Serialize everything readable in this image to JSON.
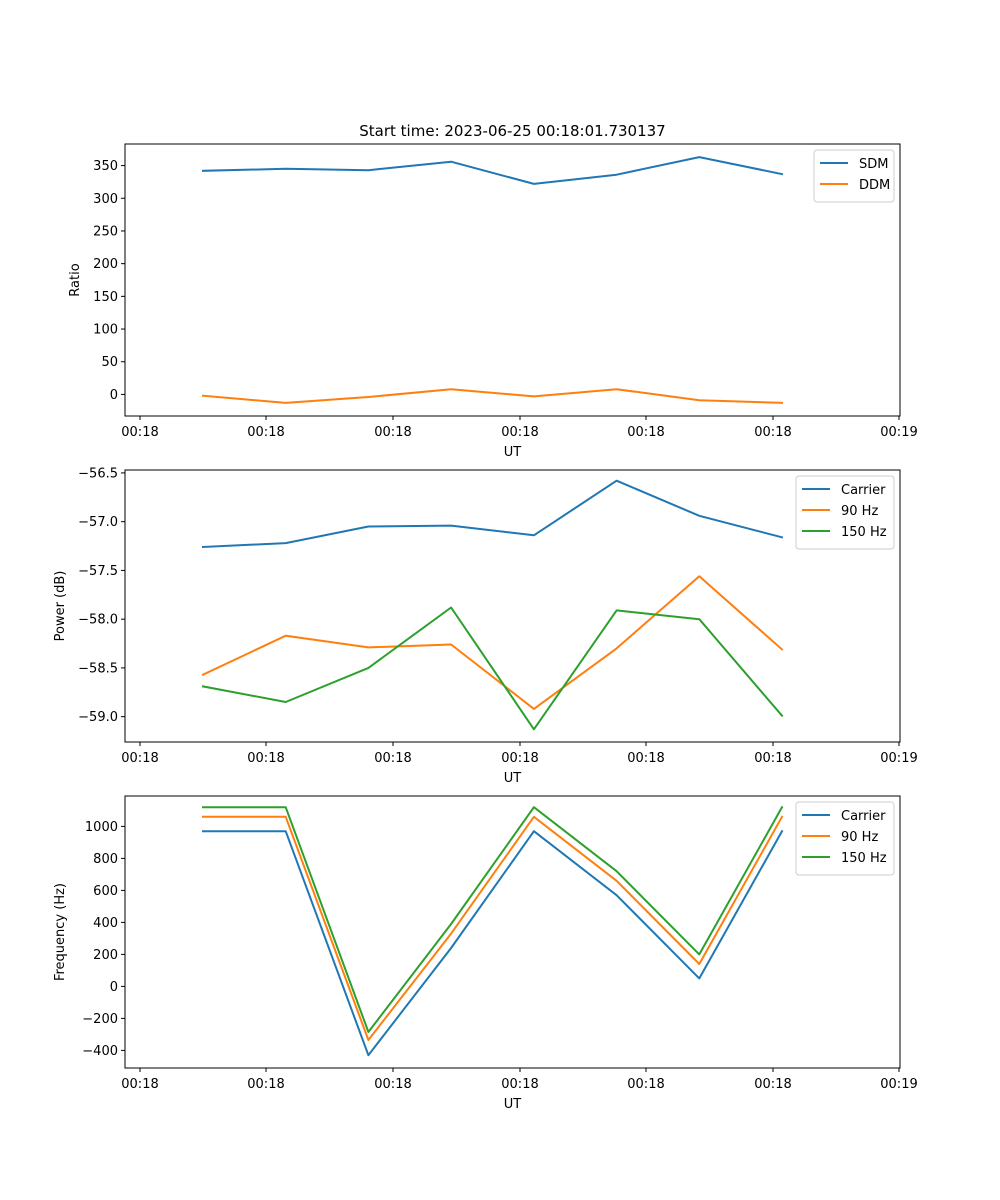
{
  "figure": {
    "title": "Start time: 2023-06-25 00:18:01.730137"
  },
  "chart_data": [
    {
      "type": "line",
      "title": "Start time: 2023-06-25 00:18:01.730137",
      "xlabel": "UT",
      "ylabel": "Ratio",
      "x_tick_labels": [
        "00:18",
        "00:18",
        "00:18",
        "00:18",
        "00:18",
        "00:18",
        "00:19"
      ],
      "y_ticks": [
        0,
        50,
        100,
        150,
        200,
        250,
        300,
        350
      ],
      "ylim": [
        -33,
        383
      ],
      "grid": false,
      "legend_position": "top-right",
      "series": [
        {
          "name": "SDM",
          "color": "#1f77b4",
          "values": [
            342,
            345,
            343,
            356,
            322,
            336,
            363,
            337
          ]
        },
        {
          "name": "DDM",
          "color": "#ff7f0e",
          "values": [
            -2,
            -13,
            -4,
            8,
            -3,
            8,
            -9,
            -13
          ]
        }
      ]
    },
    {
      "type": "line",
      "title": "",
      "xlabel": "UT",
      "ylabel": "Power (dB)",
      "x_tick_labels": [
        "00:18",
        "00:18",
        "00:18",
        "00:18",
        "00:18",
        "00:18",
        "00:19"
      ],
      "y_ticks": [
        -59.0,
        -58.5,
        -58.0,
        -57.5,
        -57.0,
        -56.5
      ],
      "ylim": [
        -59.26,
        -56.47
      ],
      "grid": false,
      "legend_position": "top-right",
      "series": [
        {
          "name": "Carrier",
          "color": "#1f77b4",
          "values": [
            -57.26,
            -57.22,
            -57.05,
            -57.04,
            -57.14,
            -56.58,
            -56.94,
            -57.16
          ]
        },
        {
          "name": "90 Hz",
          "color": "#ff7f0e",
          "values": [
            -58.57,
            -58.17,
            -58.29,
            -58.26,
            -58.92,
            -58.3,
            -57.56,
            -58.31
          ]
        },
        {
          "name": "150 Hz",
          "color": "#2ca02c",
          "values": [
            -58.69,
            -58.85,
            -58.5,
            -57.88,
            -59.13,
            -57.91,
            -58.0,
            -58.99
          ]
        }
      ]
    },
    {
      "type": "line",
      "title": "",
      "xlabel": "UT",
      "ylabel": "Frequency (Hz)",
      "x_tick_labels": [
        "00:18",
        "00:18",
        "00:18",
        "00:18",
        "00:18",
        "00:18",
        "00:19"
      ],
      "y_ticks": [
        -400,
        -200,
        0,
        200,
        400,
        600,
        800,
        1000
      ],
      "ylim": [
        -510,
        1190
      ],
      "grid": false,
      "legend_position": "top-right",
      "series": [
        {
          "name": "Carrier",
          "color": "#1f77b4",
          "values": [
            970,
            970,
            -430,
            240,
            970,
            570,
            50,
            970
          ]
        },
        {
          "name": "90 Hz",
          "color": "#ff7f0e",
          "values": [
            1060,
            1060,
            -335,
            330,
            1060,
            660,
            140,
            1060
          ]
        },
        {
          "name": "150 Hz",
          "color": "#2ca02c",
          "values": [
            1120,
            1120,
            -285,
            390,
            1120,
            720,
            200,
            1120
          ]
        }
      ]
    }
  ]
}
